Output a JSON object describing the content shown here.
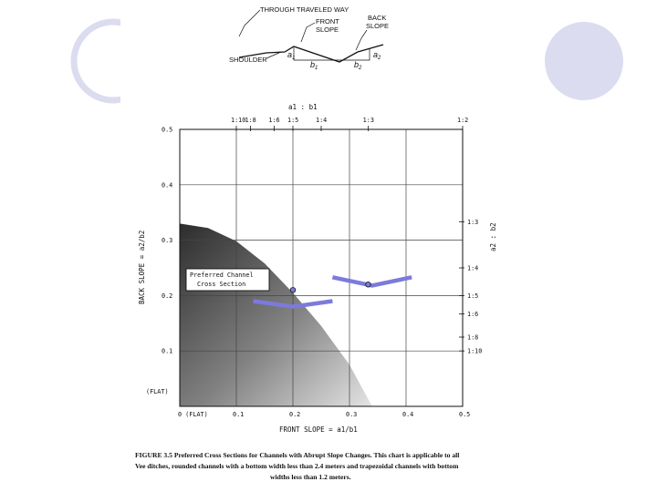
{
  "slide": {
    "decor_color": "#dcdcf0",
    "marker_color": "#7b7bdc"
  },
  "diagram": {
    "label_traveled_way": "THROUGH TRAVELED WAY",
    "label_front_slope_1": "FRONT",
    "label_front_slope_2": "SLOPE",
    "label_back_slope_1": "BACK",
    "label_back_slope_2": "SLOPE",
    "label_shoulder": "SHOULDER",
    "label_a1": "a",
    "label_a1_sub": "1",
    "label_b1": "b",
    "label_b1_sub": "1",
    "label_b2": "b",
    "label_b2_sub": "2",
    "label_a2": "a",
    "label_a2_sub": "2"
  },
  "chart_data": {
    "type": "area",
    "title": "",
    "xlabel": "FRONT SLOPE = a1/b1",
    "ylabel": "BACK SLOPE = a2/b2",
    "xlim": [
      0,
      0.5
    ],
    "ylim": [
      0,
      0.5
    ],
    "grid": true,
    "x_ticks": [
      "0 (FLAT)",
      "0.1",
      "0.2",
      "0.3",
      "0.4",
      "0.5"
    ],
    "y_ticks": [
      "0",
      "0.1",
      "0.2",
      "0.3",
      "0.4",
      "0.5"
    ],
    "y_flat_label": "(FLAT)",
    "top_axis_label": "a1 : b1",
    "top_ticks": [
      {
        "label": "1:10",
        "x": 0.1
      },
      {
        "label": "1:8",
        "x": 0.125
      },
      {
        "label": "1:6",
        "x": 0.1667
      },
      {
        "label": "1:5",
        "x": 0.2
      },
      {
        "label": "1:4",
        "x": 0.25
      },
      {
        "label": "1:3",
        "x": 0.3333
      },
      {
        "label": "1:2",
        "x": 0.5
      }
    ],
    "right_axis_label": "a2 : b2",
    "right_ticks": [
      {
        "label": "1:3",
        "y": 0.3333
      },
      {
        "label": "1:4",
        "y": 0.25
      },
      {
        "label": "1:5",
        "y": 0.2
      },
      {
        "label": "1:6",
        "y": 0.1667
      },
      {
        "label": "1:8",
        "y": 0.125
      },
      {
        "label": "1:10",
        "y": 0.1
      }
    ],
    "preferred_region": {
      "name": "Preferred Channel Cross Section",
      "boundary": [
        {
          "x": 0,
          "y": 0.33
        },
        {
          "x": 0.05,
          "y": 0.322
        },
        {
          "x": 0.1,
          "y": 0.298
        },
        {
          "x": 0.15,
          "y": 0.258
        },
        {
          "x": 0.2,
          "y": 0.205
        },
        {
          "x": 0.25,
          "y": 0.145
        },
        {
          "x": 0.3,
          "y": 0.075
        },
        {
          "x": 0.34,
          "y": 0
        }
      ]
    },
    "annotation_box": {
      "line1": "Preferred Channel",
      "line2": "Cross Section"
    },
    "points": [
      {
        "x": 0.333,
        "y": 0.22
      },
      {
        "x": 0.2,
        "y": 0.21
      }
    ],
    "v_markers": [
      {
        "left": {
          "x": 0.27,
          "y": 0.233
        },
        "vertex": {
          "x": 0.34,
          "y": 0.218
        },
        "right": {
          "x": 0.41,
          "y": 0.233
        }
      },
      {
        "left": {
          "x": 0.13,
          "y": 0.19
        },
        "vertex": {
          "x": 0.2,
          "y": 0.18
        },
        "right": {
          "x": 0.27,
          "y": 0.19
        }
      }
    ]
  },
  "caption": {
    "line1": "FIGURE 3.5 Preferred Cross Sections for Channels with Abrupt Slope Changes. This chart is applicable to all",
    "line2": "Vee ditches, rounded channels with a bottom width less than 2.4 meters and trapezoidal channels with bottom",
    "line3": "widths less than 1.2 meters."
  }
}
